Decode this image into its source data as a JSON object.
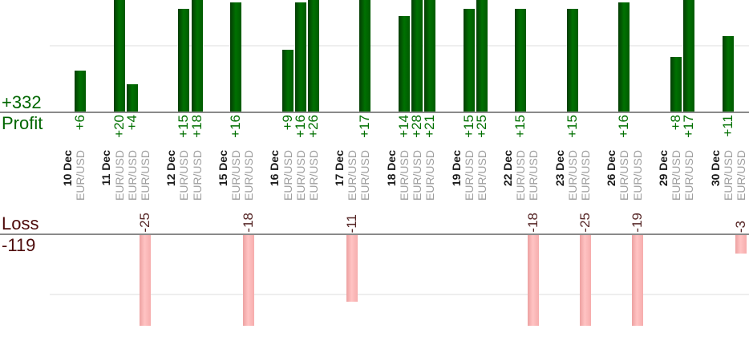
{
  "summary": {
    "profit_total_label": "+332",
    "profit_axis_label": "Profit",
    "loss_axis_label": "Loss",
    "loss_total_label": "-119"
  },
  "colors": {
    "profit_text": "#006600",
    "profit_value_text": "#007000",
    "profit_bar": "#006600",
    "loss_title_text": "#4d0a0a",
    "loss_value_text": "#552525",
    "loss_bar": "#ffb3b3",
    "axis_line": "#8a8a8a",
    "gridline": "#eeeeee",
    "date_text": "#1a1a1a",
    "symbol_text": "#9e9e9e"
  },
  "chart_data": {
    "type": "bar",
    "title": "",
    "symbol": "EUR/USD",
    "profit_total": 332,
    "loss_total": -119,
    "legend_position": "none",
    "grid": "faint horizontal gridlines, one per panel",
    "layout": "two stacked panels sharing x slots: profit bars grow up from profit axis, loss bars grow down from loss axis; all bar/value/date labels rotated 90deg CCW; tall bars clipped by panel edges",
    "groups": [
      {
        "date": "10 Dec",
        "trades": [
          {
            "value": 6,
            "label": "+6"
          }
        ]
      },
      {
        "date": "11 Dec",
        "trades": [
          {
            "value": 20,
            "label": "+20"
          },
          {
            "value": 4,
            "label": "+4"
          },
          {
            "value": -25,
            "label": "-25"
          }
        ]
      },
      {
        "date": "12 Dec",
        "trades": [
          {
            "value": 15,
            "label": "+15"
          },
          {
            "value": 18,
            "label": "+18"
          }
        ]
      },
      {
        "date": "15 Dec",
        "trades": [
          {
            "value": 16,
            "label": "+16"
          },
          {
            "value": -18,
            "label": "-18"
          }
        ]
      },
      {
        "date": "16 Dec",
        "trades": [
          {
            "value": 9,
            "label": "+9"
          },
          {
            "value": 16,
            "label": "+16"
          },
          {
            "value": 26,
            "label": "+26"
          }
        ]
      },
      {
        "date": "17 Dec",
        "trades": [
          {
            "value": -11,
            "label": "-11"
          },
          {
            "value": 17,
            "label": "+17"
          }
        ]
      },
      {
        "date": "18 Dec",
        "trades": [
          {
            "value": 14,
            "label": "+14"
          },
          {
            "value": 28,
            "label": "+28"
          },
          {
            "value": 21,
            "label": "+21"
          }
        ]
      },
      {
        "date": "19 Dec",
        "trades": [
          {
            "value": 15,
            "label": "+15"
          },
          {
            "value": 25,
            "label": "+25"
          }
        ]
      },
      {
        "date": "22 Dec",
        "trades": [
          {
            "value": 15,
            "label": "+15"
          },
          {
            "value": -18,
            "label": "-18"
          }
        ]
      },
      {
        "date": "23 Dec",
        "trades": [
          {
            "value": 15,
            "label": "+15"
          },
          {
            "value": -25,
            "label": "-25"
          }
        ]
      },
      {
        "date": "26 Dec",
        "trades": [
          {
            "value": 16,
            "label": "+16"
          },
          {
            "value": -19,
            "label": "-19"
          }
        ]
      },
      {
        "date": "29 Dec",
        "trades": [
          {
            "value": 8,
            "label": "+8"
          },
          {
            "value": 17,
            "label": "+17"
          }
        ]
      },
      {
        "date": "30 Dec",
        "trades": [
          {
            "value": 11,
            "label": "+11"
          },
          {
            "value": -3,
            "label": "-3"
          }
        ]
      }
    ]
  }
}
